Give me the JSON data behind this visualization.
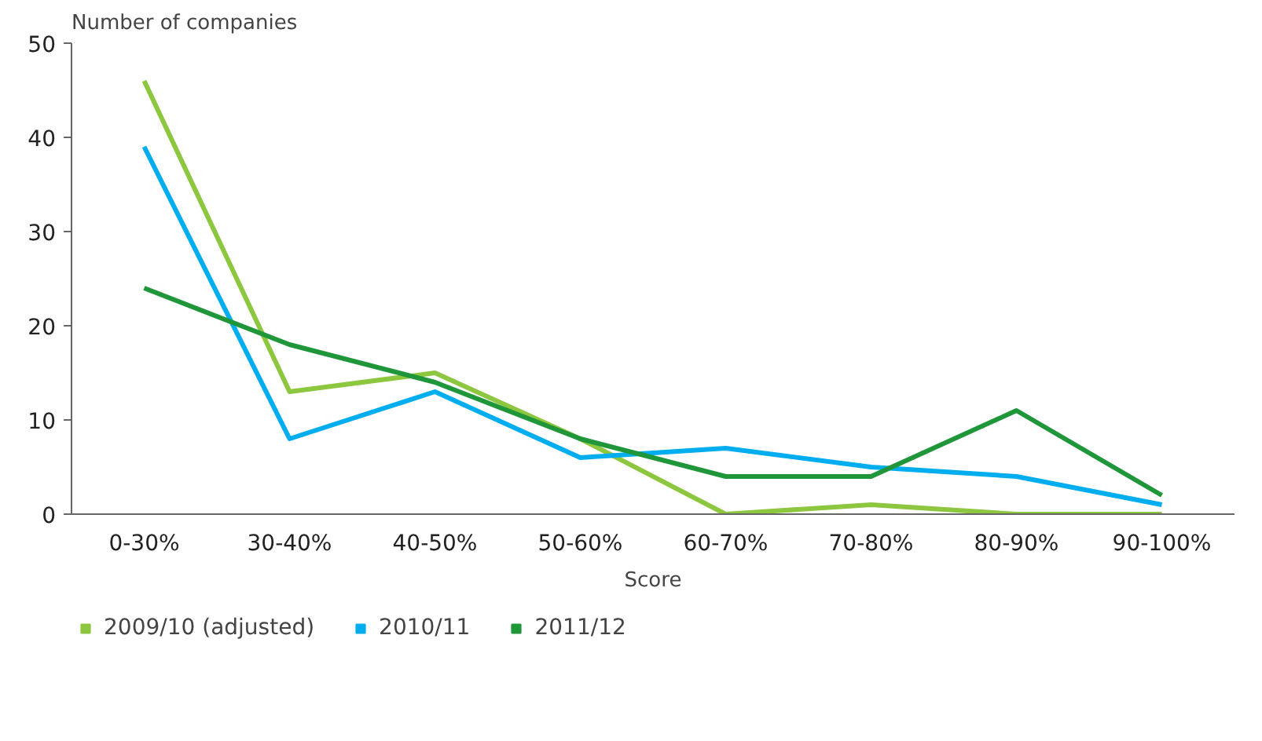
{
  "chart_data": {
    "type": "line",
    "ylabel": "Number of companies",
    "xlabel": "Score",
    "categories": [
      "0-30%",
      "30-40%",
      "40-50%",
      "50-60%",
      "60-70%",
      "70-80%",
      "80-90%",
      "90-100%"
    ],
    "series": [
      {
        "name": "2009/10 (adjusted)",
        "color": "#8dc63f",
        "values": [
          46,
          13,
          15,
          8,
          0,
          1,
          0,
          0
        ]
      },
      {
        "name": "2010/11",
        "color": "#00aeef",
        "values": [
          39,
          8,
          13,
          6,
          7,
          5,
          4,
          1
        ]
      },
      {
        "name": "2011/12",
        "color": "#1e9639",
        "values": [
          24,
          18,
          14,
          8,
          4,
          4,
          11,
          2
        ]
      }
    ],
    "ylim": [
      0,
      50
    ],
    "yticks": [
      0,
      10,
      20,
      30,
      40,
      50
    ],
    "grid": false,
    "legend": "bottom",
    "marker": "none",
    "line_style": "solid"
  }
}
